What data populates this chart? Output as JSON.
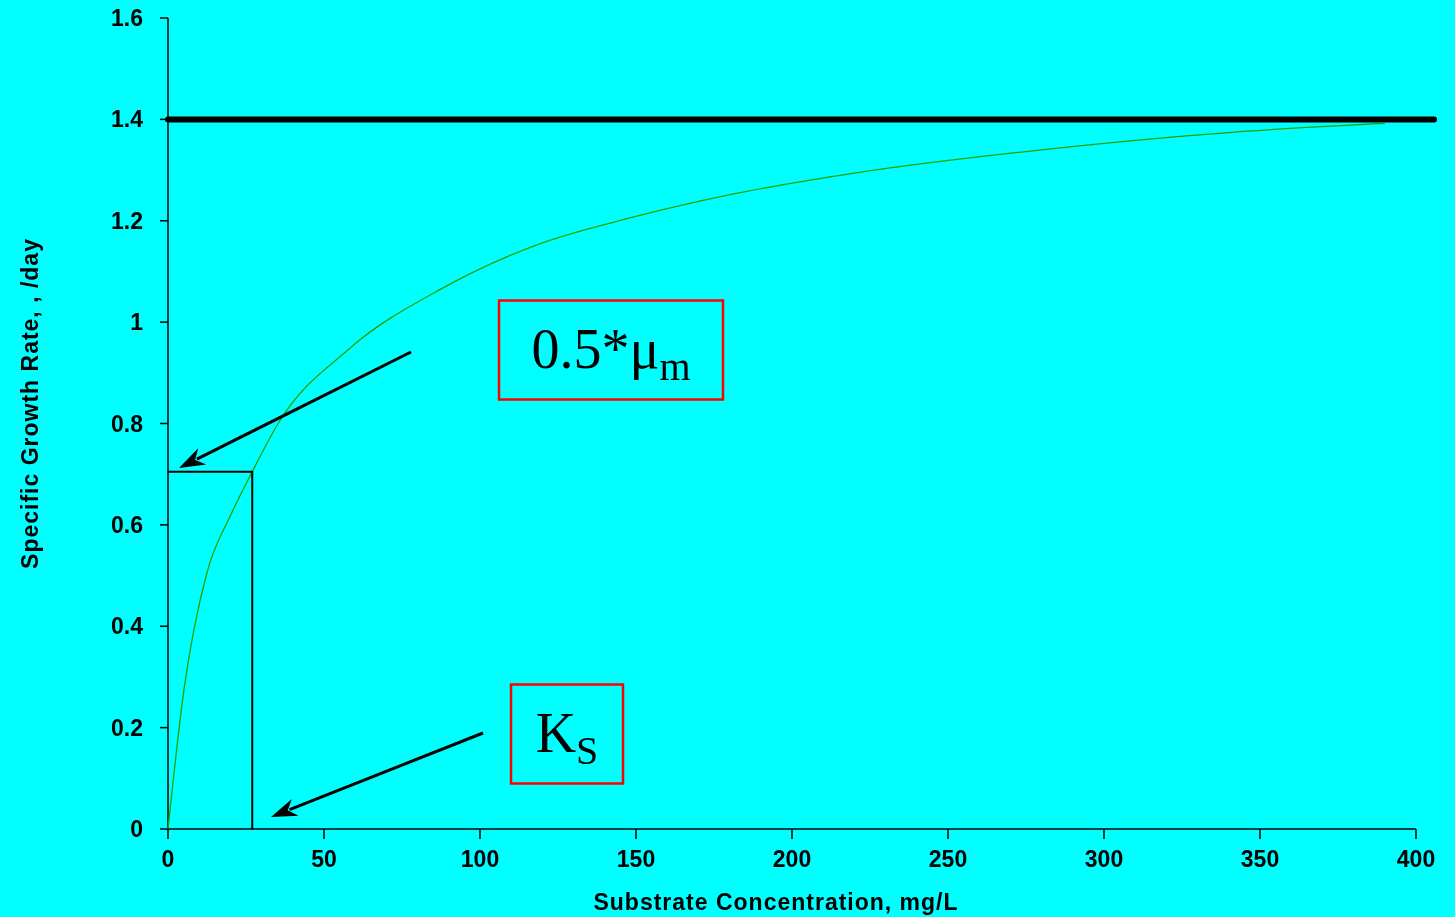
{
  "chart_data": {
    "type": "line",
    "xlabel": "Substrate Concentration, mg/L",
    "ylabel": "Specific Growth Rate, , /day",
    "xlim": [
      0,
      400
    ],
    "ylim": [
      0,
      1.6
    ],
    "xticks": [
      0,
      50,
      100,
      150,
      200,
      250,
      300,
      350,
      400
    ],
    "yticks": [
      0,
      0.2,
      0.4,
      0.6,
      0.8,
      1,
      1.2,
      1.4,
      1.6
    ],
    "series": [
      {
        "color": "#22a000",
        "x": [
          0,
          5.1,
          12.5,
          20,
          27,
          35.3,
          58,
          88,
          118,
          149,
          179,
          221,
          280,
          342,
          390
        ],
        "values": [
          0,
          0.274,
          0.506,
          0.618,
          0.705,
          0.8,
          0.947,
          1.067,
          1.152,
          1.207,
          1.25,
          1.295,
          1.34,
          1.375,
          1.392
        ]
      },
      {
        "color": "#000000",
        "x": [
          0,
          27,
          27
        ],
        "values": [
          0.705,
          0.705,
          0
        ]
      }
    ],
    "ref_lines": [
      {
        "axis": "y",
        "value": 1.4,
        "color": "#000000"
      }
    ],
    "annotations": [
      "0.5*μ$_{m}$",
      "K$_{S}$"
    ],
    "grid": false,
    "marker": "none",
    "line_style": "solid"
  }
}
